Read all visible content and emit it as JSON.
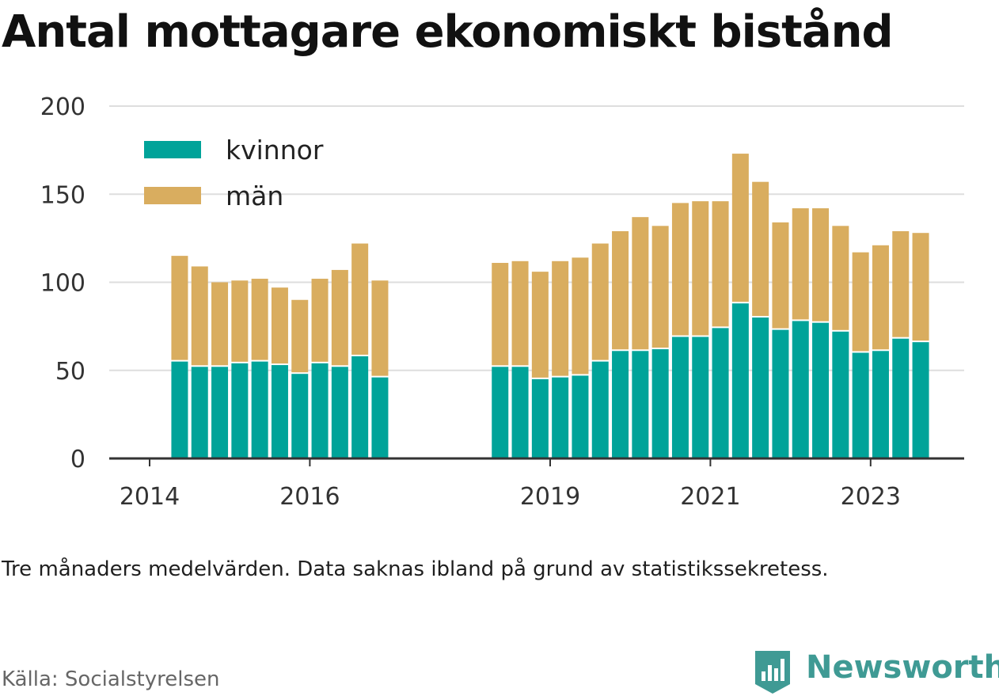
{
  "title": "Antal mottagare ekonomiskt bistånd",
  "note": "Tre månaders medelvärden. Data saknas ibland på grund av statistikssekretess.",
  "source": "Källa: Socialstyrelsen",
  "brand": {
    "name": "Newsworthy",
    "icon": "newsworthy-logo-icon",
    "color": "#3f9a94"
  },
  "chart_data": {
    "type": "bar",
    "stacked": true,
    "x_tick_labels": [
      "2014",
      "2016",
      "2019",
      "2021",
      "2023"
    ],
    "x_tick_positions": [
      2014,
      2016,
      2019,
      2021,
      2023
    ],
    "y_ticks": [
      "0",
      "50",
      "100",
      "150",
      "200"
    ],
    "ylim": [
      0,
      200
    ],
    "grid": true,
    "legend_position": "top-left",
    "series": [
      {
        "name": "kvinnor",
        "color": "#00a399"
      },
      {
        "name": "män",
        "color": "#d9ad5f"
      }
    ],
    "bars": [
      {
        "x": 2014.375,
        "kvinnor": 55,
        "man": 60
      },
      {
        "x": 2014.625,
        "kvinnor": 52,
        "man": 57
      },
      {
        "x": 2014.875,
        "kvinnor": 52,
        "man": 48
      },
      {
        "x": 2015.125,
        "kvinnor": 54,
        "man": 47
      },
      {
        "x": 2015.375,
        "kvinnor": 55,
        "man": 47
      },
      {
        "x": 2015.625,
        "kvinnor": 53,
        "man": 44
      },
      {
        "x": 2015.875,
        "kvinnor": 48,
        "man": 42
      },
      {
        "x": 2016.125,
        "kvinnor": 54,
        "man": 48
      },
      {
        "x": 2016.375,
        "kvinnor": 52,
        "man": 55
      },
      {
        "x": 2016.625,
        "kvinnor": 58,
        "man": 64
      },
      {
        "x": 2016.875,
        "kvinnor": 46,
        "man": 55
      },
      {
        "x": 2018.375,
        "kvinnor": 52,
        "man": 59
      },
      {
        "x": 2018.625,
        "kvinnor": 52,
        "man": 60
      },
      {
        "x": 2018.875,
        "kvinnor": 45,
        "man": 61
      },
      {
        "x": 2019.125,
        "kvinnor": 46,
        "man": 66
      },
      {
        "x": 2019.375,
        "kvinnor": 47,
        "man": 67
      },
      {
        "x": 2019.625,
        "kvinnor": 55,
        "man": 67
      },
      {
        "x": 2019.875,
        "kvinnor": 61,
        "man": 68
      },
      {
        "x": 2020.125,
        "kvinnor": 61,
        "man": 76
      },
      {
        "x": 2020.375,
        "kvinnor": 62,
        "man": 70
      },
      {
        "x": 2020.625,
        "kvinnor": 69,
        "man": 76
      },
      {
        "x": 2020.875,
        "kvinnor": 69,
        "man": 77
      },
      {
        "x": 2021.125,
        "kvinnor": 74,
        "man": 72
      },
      {
        "x": 2021.375,
        "kvinnor": 88,
        "man": 85
      },
      {
        "x": 2021.625,
        "kvinnor": 80,
        "man": 77
      },
      {
        "x": 2021.875,
        "kvinnor": 73,
        "man": 61
      },
      {
        "x": 2022.125,
        "kvinnor": 78,
        "man": 64
      },
      {
        "x": 2022.375,
        "kvinnor": 77,
        "man": 65
      },
      {
        "x": 2022.625,
        "kvinnor": 72,
        "man": 60
      },
      {
        "x": 2022.875,
        "kvinnor": 60,
        "man": 57
      },
      {
        "x": 2023.125,
        "kvinnor": 61,
        "man": 60
      },
      {
        "x": 2023.375,
        "kvinnor": 68,
        "man": 61
      },
      {
        "x": 2023.625,
        "kvinnor": 66,
        "man": 62
      }
    ]
  }
}
